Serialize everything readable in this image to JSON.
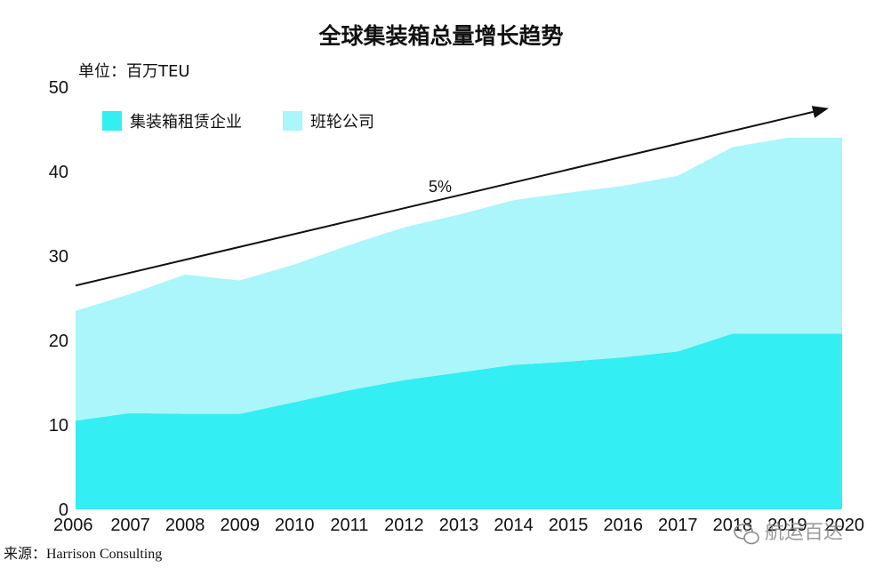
{
  "chart_data": {
    "type": "area",
    "stacked": true,
    "title": "全球集装箱总量增长趋势",
    "unit_label": "单位：百万TEU",
    "x": [
      "2006",
      "2007",
      "2008",
      "2009",
      "2010",
      "2011",
      "2012",
      "2013",
      "2014",
      "2015",
      "2016",
      "2017",
      "2018",
      "2019",
      "2020"
    ],
    "ylim": [
      0,
      50
    ],
    "yticks": [
      0,
      10,
      20,
      30,
      40,
      50
    ],
    "series": [
      {
        "name": "集装箱租赁企业",
        "color": "#33eef2",
        "values": [
          10.5,
          11.4,
          11.3,
          11.3,
          12.7,
          14.1,
          15.3,
          16.2,
          17.1,
          17.5,
          18.0,
          18.7,
          20.8,
          20.8,
          20.8
        ]
      },
      {
        "name": "班轮公司",
        "color": "#aaf6fa",
        "values": [
          13.0,
          14.1,
          16.5,
          15.8,
          16.3,
          17.2,
          18.1,
          18.7,
          19.5,
          20.0,
          20.3,
          20.8,
          22.1,
          23.2,
          23.2
        ]
      }
    ],
    "legend_position": "top-left",
    "grid": false,
    "trend_arrow": {
      "label": "5%",
      "start": [
        2006,
        26.5
      ],
      "end": [
        2020,
        47.5
      ]
    },
    "source": "来源：Harrison Consulting"
  },
  "watermark": {
    "text": "航运百达",
    "icon": "wechat-icon"
  }
}
